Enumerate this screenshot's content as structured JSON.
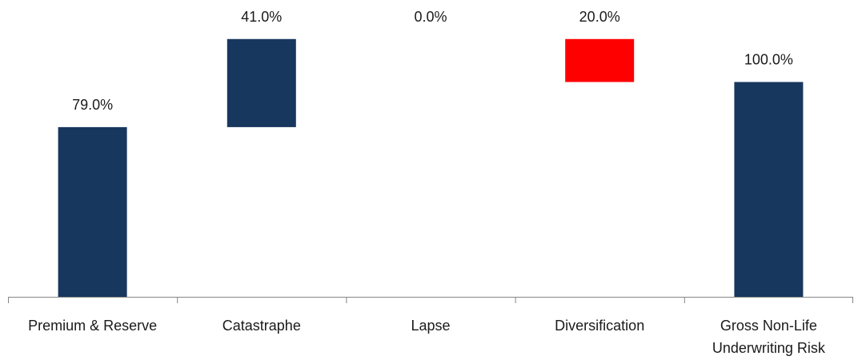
{
  "chart_data": {
    "type": "bar",
    "subtype": "waterfall",
    "categories": [
      "Premium & Reserve",
      "Catastraphe",
      "Lapse",
      "Diversification",
      "Gross Non-Life Underwriting Risk"
    ],
    "category_label_lines": [
      [
        "Premium & Reserve"
      ],
      [
        "Catastraphe"
      ],
      [
        "Lapse"
      ],
      [
        "Diversification"
      ],
      [
        "Gross Non-Life",
        "Underwriting Risk"
      ]
    ],
    "values": [
      79.0,
      41.0,
      0.0,
      -20.0,
      100.0
    ],
    "step_kinds": [
      "total",
      "increase",
      "increase",
      "decrease",
      "total"
    ],
    "data_labels": [
      "79.0%",
      "41.0%",
      "0.0%",
      "20.0%",
      "100.0%"
    ],
    "title": "",
    "xlabel": "",
    "ylabel": "",
    "ylim": [
      0,
      120
    ],
    "grid": false,
    "legend": "none",
    "colors": {
      "increase": "#17375e",
      "total": "#17375e",
      "decrease": "#ff0000",
      "axis": "#868686",
      "text": "#1a1a1a"
    }
  }
}
